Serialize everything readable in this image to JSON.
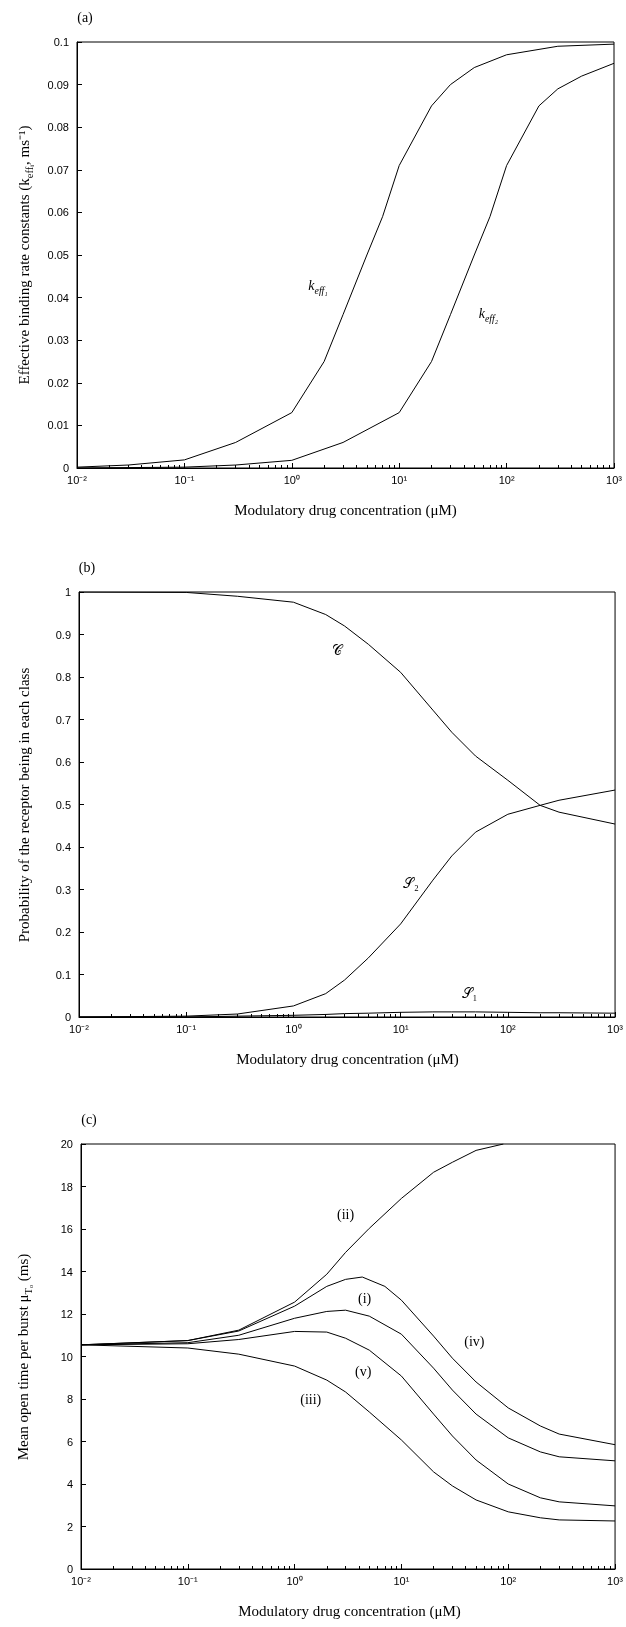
{
  "chart_data": [
    {
      "type": "line",
      "title": "(a)",
      "xlabel": "Modulatory drug concentration (μM)",
      "ylabel": "Effective binding rate constants (k$_{effᵢ}$, ms⁻¹)",
      "log": "x",
      "marker": "none",
      "xlim": [
        0.01,
        1000
      ],
      "xticks": [
        {
          "value": 0.01,
          "label": "10⁻²"
        },
        {
          "value": 0.1,
          "label": "10⁻¹"
        },
        {
          "value": 1,
          "label": "10⁰"
        },
        {
          "value": 10,
          "label": "10¹"
        },
        {
          "value": 100,
          "label": "10²"
        },
        {
          "value": 1000,
          "label": "10³"
        }
      ],
      "ylim": [
        0,
        0.1
      ],
      "yticks": [
        0,
        0.01,
        0.02,
        0.03,
        0.04,
        0.05,
        0.06,
        0.07,
        0.08,
        0.09,
        0.1
      ],
      "series": [
        {
          "name": "k$_{eff₁}$",
          "color": "#000000",
          "x": [
            0.01,
            0.03,
            0.1,
            0.3,
            1,
            2,
            3,
            5,
            7,
            10,
            20,
            30,
            50,
            100,
            300,
            1000
          ],
          "values": [
            0.0002,
            0.0007,
            0.0019,
            0.006,
            0.013,
            0.025,
            0.036,
            0.05,
            0.059,
            0.071,
            0.085,
            0.09,
            0.094,
            0.097,
            0.099,
            0.0995
          ]
        },
        {
          "name": "k$_{eff₂}$",
          "color": "#000000",
          "x": [
            0.01,
            0.1,
            0.3,
            1,
            3,
            10,
            20,
            30,
            50,
            70,
            100,
            200,
            300,
            500,
            1000
          ],
          "values": [
            0,
            0.0002,
            0.0007,
            0.0018,
            0.006,
            0.013,
            0.025,
            0.036,
            0.05,
            0.059,
            0.071,
            0.085,
            0.089,
            0.092,
            0.095
          ]
        }
      ]
    },
    {
      "type": "line",
      "title": "(b)",
      "xlabel": "Modulatory drug concentration (μM)",
      "ylabel": "Probability of the receptor being in each class",
      "log": "x",
      "marker": "none",
      "xlim": [
        0.01,
        1000
      ],
      "xticks": [
        {
          "value": 0.01,
          "label": "10⁻²"
        },
        {
          "value": 0.1,
          "label": "10⁻¹"
        },
        {
          "value": 1,
          "label": "10⁰"
        },
        {
          "value": 10,
          "label": "10¹"
        },
        {
          "value": 100,
          "label": "10²"
        },
        {
          "value": 1000,
          "label": "10³"
        }
      ],
      "ylim": [
        0,
        1
      ],
      "yticks": [
        0,
        0.1,
        0.2,
        0.3,
        0.4,
        0.5,
        0.6,
        0.7,
        0.8,
        0.9,
        1
      ],
      "x": [
        0.01,
        0.1,
        0.3,
        1,
        2,
        3,
        5,
        10,
        20,
        30,
        50,
        100,
        200,
        300,
        1000
      ],
      "series": [
        {
          "name": "𝒞",
          "color": "#000000",
          "values": [
            1,
            0.999,
            0.99,
            0.976,
            0.947,
            0.92,
            0.877,
            0.811,
            0.722,
            0.67,
            0.614,
            0.557,
            0.498,
            0.482,
            0.454
          ]
        },
        {
          "name": "𝒮₂",
          "color": "#000000",
          "values": [
            0,
            0.002,
            0.007,
            0.026,
            0.055,
            0.087,
            0.139,
            0.219,
            0.322,
            0.379,
            0.435,
            0.477,
            0.498,
            0.51,
            0.534
          ]
        },
        {
          "name": "𝒮₁",
          "color": "#000000",
          "values": [
            0,
            0,
            0.002,
            0.004,
            0.006,
            0.008,
            0.009,
            0.011,
            0.012,
            0.012,
            0.012,
            0.011,
            0.01,
            0.01,
            0.009
          ]
        }
      ]
    },
    {
      "type": "line",
      "title": "(c)",
      "xlabel": "Modulatory drug concentration (μM)",
      "ylabel": "Mean open time per burst μ$_{Tₒ}$ (ms)",
      "log": "x",
      "marker": "none",
      "xlim": [
        0.01,
        1000
      ],
      "xticks": [
        {
          "value": 0.01,
          "label": "10⁻²"
        },
        {
          "value": 0.1,
          "label": "10⁻¹"
        },
        {
          "value": 1,
          "label": "10⁰"
        },
        {
          "value": 10,
          "label": "10¹"
        },
        {
          "value": 100,
          "label": "10²"
        },
        {
          "value": 1000,
          "label": "10³"
        }
      ],
      "ylim": [
        0,
        20
      ],
      "yticks": [
        0,
        2,
        4,
        6,
        8,
        10,
        12,
        14,
        16,
        18,
        20
      ],
      "x": [
        0.01,
        0.1,
        0.3,
        1,
        2,
        3,
        5,
        10,
        20,
        30,
        50,
        100,
        200,
        300,
        1000
      ],
      "series": [
        {
          "name": "(i)",
          "color": "#000000",
          "values": [
            10.55,
            10.65,
            11.0,
            11.8,
            12.12,
            12.18,
            11.9,
            11.05,
            9.45,
            8.42,
            7.29,
            6.17,
            5.51,
            5.28,
            5.09
          ]
        },
        {
          "name": "(ii)",
          "color": "#000000",
          "x": [
            0.01,
            0.1,
            0.3,
            1,
            2,
            3,
            5,
            10,
            20,
            30,
            50,
            90
          ],
          "values": [
            10.55,
            10.75,
            11.24,
            12.56,
            13.87,
            14.9,
            16.03,
            17.44,
            18.67,
            19.14,
            19.7,
            20
          ]
        },
        {
          "name": "(iii)",
          "color": "#000000",
          "values": [
            10.55,
            10.4,
            10.11,
            9.55,
            8.89,
            8.33,
            7.39,
            6.07,
            4.57,
            3.91,
            3.25,
            2.69,
            2.41,
            2.31,
            2.26
          ]
        },
        {
          "name": "(iv)",
          "color": "#000000",
          "x": [
            0.01,
            0.1,
            0.3,
            1,
            2,
            3,
            4.3,
            7,
            10,
            20,
            30,
            50,
            100,
            200,
            300,
            1000
          ],
          "values": [
            10.55,
            10.75,
            11.2,
            12.37,
            13.3,
            13.63,
            13.74,
            13.3,
            12.65,
            10.96,
            9.92,
            8.8,
            7.58,
            6.73,
            6.35,
            5.85
          ]
        },
        {
          "name": "(v)",
          "color": "#000000",
          "values": [
            10.55,
            10.6,
            10.8,
            11.18,
            11.15,
            10.86,
            10.3,
            9.08,
            7.29,
            6.26,
            5.13,
            4.0,
            3.35,
            3.16,
            2.97
          ]
        }
      ]
    }
  ]
}
